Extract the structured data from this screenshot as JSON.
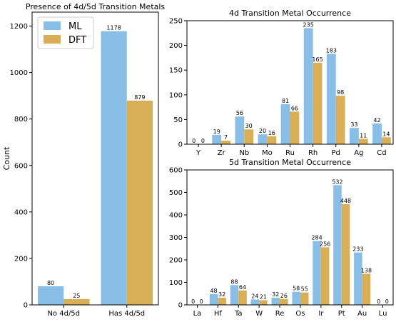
{
  "colors": {
    "ML": "#89bfe6",
    "DFT": "#d8ae56"
  },
  "chart_data": [
    {
      "type": "bar",
      "title": "Presence of 4d/5d Transition Metals",
      "xlabel": "",
      "ylabel": "Count",
      "ylim": [
        0,
        1260
      ],
      "yticks": [
        0,
        200,
        400,
        600,
        800,
        1000,
        1200
      ],
      "categories": [
        "No 4d/5d",
        "Has 4d/5d"
      ],
      "series": [
        {
          "name": "ML",
          "values": [
            80,
            1178
          ]
        },
        {
          "name": "DFT",
          "values": [
            25,
            879
          ]
        }
      ],
      "legend": "top-left",
      "grid": false
    },
    {
      "type": "bar",
      "title": "4d Transition Metal Occurrence",
      "xlabel": "",
      "ylabel": "",
      "ylim": [
        0,
        250
      ],
      "yticks": [
        0,
        50,
        100,
        150,
        200,
        250
      ],
      "categories": [
        "Y",
        "Zr",
        "Nb",
        "Mo",
        "Ru",
        "Rh",
        "Pd",
        "Ag",
        "Cd"
      ],
      "series": [
        {
          "name": "ML",
          "values": [
            0,
            19,
            56,
            20,
            81,
            235,
            183,
            33,
            42
          ]
        },
        {
          "name": "DFT",
          "values": [
            0,
            7,
            30,
            16,
            66,
            165,
            98,
            11,
            14
          ]
        }
      ],
      "grid": false
    },
    {
      "type": "bar",
      "title": "5d Transition Metal Occurrence",
      "xlabel": "",
      "ylabel": "",
      "ylim": [
        0,
        600
      ],
      "yticks": [
        0,
        100,
        200,
        300,
        400,
        500,
        600
      ],
      "categories": [
        "La",
        "Hf",
        "Ta",
        "W",
        "Re",
        "Os",
        "Ir",
        "Pt",
        "Au",
        "Lu"
      ],
      "series": [
        {
          "name": "ML",
          "values": [
            0,
            48,
            88,
            24,
            32,
            58,
            284,
            532,
            233,
            0
          ]
        },
        {
          "name": "DFT",
          "values": [
            0,
            32,
            64,
            21,
            26,
            55,
            256,
            448,
            138,
            0
          ]
        }
      ],
      "grid": false
    }
  ]
}
